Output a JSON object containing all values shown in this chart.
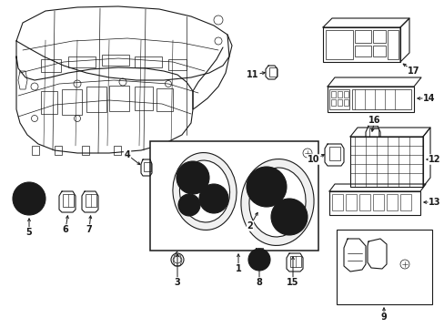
{
  "background_color": "#ffffff",
  "fig_width": 4.89,
  "fig_height": 3.6,
  "dpi": 100,
  "line_color": "#1a1a1a",
  "label_fontsize": 7.0,
  "title_fontsize": 8.0
}
